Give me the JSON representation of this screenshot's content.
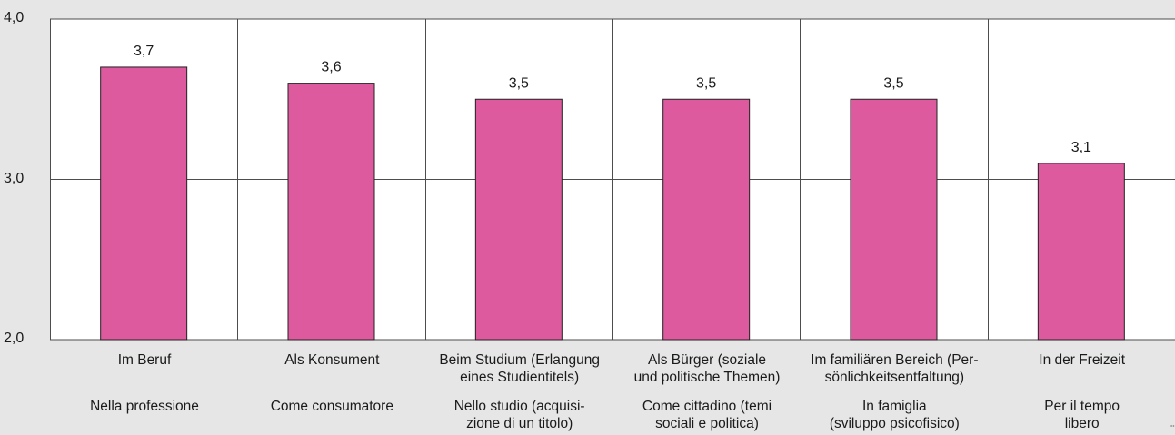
{
  "chart_data": {
    "type": "bar",
    "categories": [
      {
        "de": "Im Beruf",
        "it": "Nella professione"
      },
      {
        "de": "Als Konsument",
        "it": "Come consumatore"
      },
      {
        "de": "Beim Studium (Erlangung\neines Studientitels)",
        "it": "Nello studio (acquisi-\nzione di un titolo)"
      },
      {
        "de": "Als Bürger (soziale\nund politische Themen)",
        "it": "Come cittadino (temi\nsociali e politica)"
      },
      {
        "de": "Im familiären Bereich (Per-\nsönlichkeitsentfaltung)",
        "it": "In famiglia\n(sviluppo psicofisico)"
      },
      {
        "de": "In der Freizeit",
        "it": "Per il tempo\nlibero"
      }
    ],
    "values": [
      3.7,
      3.6,
      3.5,
      3.5,
      3.5,
      3.1
    ],
    "value_labels": [
      "3,7",
      "3,6",
      "3,5",
      "3,5",
      "3,5",
      "3,1"
    ],
    "ylim": [
      2.0,
      4.0
    ],
    "yticks": [
      {
        "value": 2.0,
        "label": "2,0"
      },
      {
        "value": 3.0,
        "label": "3,0"
      },
      {
        "value": 4.0,
        "label": "4,0"
      }
    ],
    "grid": true,
    "bar_color": "#dd5a9e",
    "background": "#e6e6e6",
    "plot_background": "#ffffff"
  }
}
